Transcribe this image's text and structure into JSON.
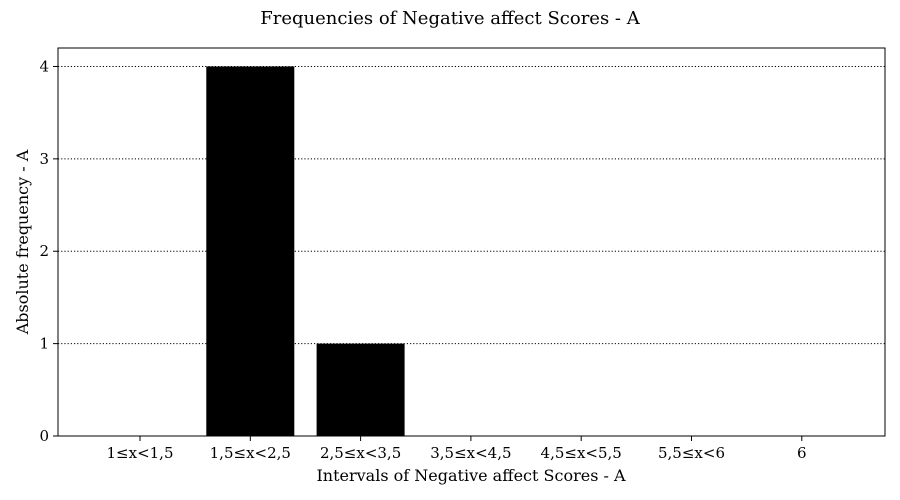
{
  "chart_data": {
    "type": "bar",
    "title": "Frequencies of Negative affect Scores - A",
    "xlabel": "Intervals of Negative affect Scores - A",
    "ylabel": "Absolute frequency - A",
    "categories": [
      "1≤x<1,5",
      "1,5≤x<2,5",
      "2,5≤x<3,5",
      "3,5≤x<4,5",
      "4,5≤x<5,5",
      "5,5≤x<6",
      "6"
    ],
    "values": [
      0,
      4,
      1,
      0,
      0,
      0,
      0
    ],
    "ylim": [
      0,
      4.2
    ],
    "yticks": [
      0,
      1,
      2,
      3,
      4
    ],
    "grid": "y-dotted",
    "bar_color": "#000000"
  }
}
